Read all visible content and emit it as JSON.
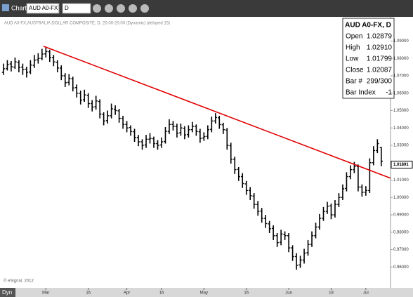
{
  "toolbar": {
    "title": "Chart",
    "symbol": "AUD A0-FX",
    "interval": "D"
  },
  "chart_data": {
    "type": "ohlc",
    "subtitle": "AUD A0-FX,AUSTRALIA DOLLAR COMPOSITE, D, 20:00-20:00 (Dynamic) (delayed 15)",
    "footer": "© eSignal, 2012",
    "mode": "Dyn",
    "color": "#000000",
    "bars": [
      [
        1.072,
        1.077,
        1.0705,
        1.074
      ],
      [
        1.0742,
        1.079,
        1.073,
        1.0765
      ],
      [
        1.0768,
        1.0785,
        1.0725,
        1.0752
      ],
      [
        1.075,
        1.0805,
        1.074,
        1.078
      ],
      [
        1.0776,
        1.079,
        1.072,
        1.0748
      ],
      [
        1.075,
        1.077,
        1.0705,
        1.0735
      ],
      [
        1.0738,
        1.0752,
        1.069,
        1.072
      ],
      [
        1.0722,
        1.079,
        1.071,
        1.0762
      ],
      [
        1.076,
        1.082,
        1.0745,
        1.079
      ],
      [
        1.0792,
        1.083,
        1.077,
        1.08
      ],
      [
        1.08,
        1.0855,
        1.079,
        1.0825
      ],
      [
        1.0826,
        1.0866,
        1.0805,
        1.084
      ],
      [
        1.0838,
        1.085,
        1.078,
        1.0805
      ],
      [
        1.0806,
        1.082,
        1.0755,
        1.078
      ],
      [
        1.0778,
        1.079,
        1.072,
        1.0745
      ],
      [
        1.0744,
        1.076,
        1.0675,
        1.07
      ],
      [
        1.07,
        1.0715,
        1.0635,
        1.066
      ],
      [
        1.0662,
        1.071,
        1.0645,
        1.0685
      ],
      [
        1.0683,
        1.0695,
        1.061,
        1.063
      ],
      [
        1.0632,
        1.065,
        1.0575,
        1.06
      ],
      [
        1.0598,
        1.0615,
        1.0535,
        1.056
      ],
      [
        1.0562,
        1.062,
        1.055,
        1.059
      ],
      [
        1.0588,
        1.06,
        1.0515,
        1.054
      ],
      [
        1.054,
        1.056,
        1.0495,
        1.052
      ],
      [
        1.0522,
        1.0585,
        1.0505,
        1.0555
      ],
      [
        1.0552,
        1.0565,
        1.0455,
        1.048
      ],
      [
        1.0478,
        1.049,
        1.0415,
        1.044
      ],
      [
        1.0442,
        1.05,
        1.0425,
        1.047
      ],
      [
        1.047,
        1.054,
        1.0455,
        1.051
      ],
      [
        1.0508,
        1.053,
        1.0475,
        1.05
      ],
      [
        1.0498,
        1.051,
        1.043,
        1.0455
      ],
      [
        1.0455,
        1.047,
        1.0395,
        1.042
      ],
      [
        1.042,
        1.044,
        1.0375,
        1.04
      ],
      [
        1.0402,
        1.0415,
        1.0355,
        1.038
      ],
      [
        1.0378,
        1.0395,
        1.032,
        1.0345
      ],
      [
        1.0345,
        1.036,
        1.0295,
        1.032
      ],
      [
        1.032,
        1.0335,
        1.0275,
        1.03
      ],
      [
        1.0302,
        1.036,
        1.0285,
        1.0335
      ],
      [
        1.0335,
        1.037,
        1.031,
        1.034
      ],
      [
        1.0338,
        1.035,
        1.0285,
        1.031
      ],
      [
        1.031,
        1.033,
        1.0275,
        1.03
      ],
      [
        1.0302,
        1.0345,
        1.0285,
        1.032
      ],
      [
        1.0322,
        1.0405,
        1.031,
        1.038
      ],
      [
        1.038,
        1.045,
        1.0365,
        1.042
      ],
      [
        1.042,
        1.044,
        1.0385,
        1.041
      ],
      [
        1.0408,
        1.0425,
        1.0345,
        1.037
      ],
      [
        1.0372,
        1.0425,
        1.0355,
        1.04
      ],
      [
        1.0398,
        1.041,
        1.0335,
        1.036
      ],
      [
        1.0362,
        1.0415,
        1.0345,
        1.039
      ],
      [
        1.039,
        1.0435,
        1.0375,
        1.041
      ],
      [
        1.0408,
        1.042,
        1.0355,
        1.038
      ],
      [
        1.0378,
        1.0395,
        1.0315,
        1.034
      ],
      [
        1.0342,
        1.0375,
        1.0325,
        1.035
      ],
      [
        1.0352,
        1.0415,
        1.0335,
        1.039
      ],
      [
        1.0392,
        1.0465,
        1.0375,
        1.044
      ],
      [
        1.044,
        1.0485,
        1.0425,
        1.046
      ],
      [
        1.0458,
        1.047,
        1.0395,
        1.042
      ],
      [
        1.0418,
        1.043,
        1.0365,
        1.039
      ],
      [
        1.0388,
        1.04,
        1.0275,
        1.03
      ],
      [
        1.0298,
        1.0315,
        1.0195,
        1.022
      ],
      [
        1.022,
        1.0235,
        1.0135,
        1.016
      ],
      [
        1.0162,
        1.0175,
        1.0095,
        1.012
      ],
      [
        1.012,
        1.014,
        1.0055,
        1.008
      ],
      [
        1.0078,
        1.0095,
        1.0015,
        1.004
      ],
      [
        1.004,
        1.006,
        0.9985,
        1.001
      ],
      [
        1.0008,
        1.0025,
        0.9935,
        0.996
      ],
      [
        0.996,
        0.998,
        0.9895,
        0.992
      ],
      [
        0.9922,
        0.994,
        0.9855,
        0.988
      ],
      [
        0.988,
        0.99,
        0.9825,
        0.985
      ],
      [
        0.9848,
        0.9865,
        0.9795,
        0.982
      ],
      [
        0.9822,
        0.984,
        0.9755,
        0.978
      ],
      [
        0.978,
        0.9795,
        0.9715,
        0.974
      ],
      [
        0.9742,
        0.9815,
        0.9725,
        0.979
      ],
      [
        0.9788,
        0.9805,
        0.9755,
        0.978
      ],
      [
        0.978,
        0.9795,
        0.9685,
        0.971
      ],
      [
        0.971,
        0.9725,
        0.9635,
        0.966
      ],
      [
        0.966,
        0.968,
        0.9585,
        0.961
      ],
      [
        0.9612,
        0.9665,
        0.9595,
        0.964
      ],
      [
        0.964,
        0.9705,
        0.962,
        0.968
      ],
      [
        0.9682,
        0.9755,
        0.9665,
        0.973
      ],
      [
        0.973,
        0.9805,
        0.9715,
        0.978
      ],
      [
        0.978,
        0.9855,
        0.9765,
        0.983
      ],
      [
        0.983,
        0.9905,
        0.9815,
        0.988
      ],
      [
        0.988,
        0.9945,
        0.9865,
        0.992
      ],
      [
        0.992,
        0.9975,
        0.9905,
        0.995
      ],
      [
        0.9952,
        0.9965,
        0.9875,
        0.99
      ],
      [
        0.99,
        0.9985,
        0.9885,
        0.996
      ],
      [
        0.996,
        1.0025,
        0.9945,
        1.0
      ],
      [
        1.0,
        1.0075,
        0.9985,
        1.005
      ],
      [
        1.0052,
        1.0145,
        1.0035,
        1.012
      ],
      [
        1.012,
        1.0185,
        1.0105,
        1.016
      ],
      [
        1.016,
        1.0205,
        1.014,
        1.018
      ],
      [
        1.0178,
        1.019,
        1.0035,
        1.006
      ],
      [
        1.006,
        1.0075,
        1.0005,
        1.003
      ],
      [
        1.003,
        1.0065,
        1.001,
        1.004
      ],
      [
        1.004,
        1.0225,
        1.0025,
        1.02
      ],
      [
        1.02,
        1.0295,
        1.0185,
        1.027
      ],
      [
        1.027,
        1.0335,
        1.0255,
        1.031
      ],
      [
        1.02879,
        1.0291,
        1.01799,
        1.02087
      ]
    ],
    "trendline": {
      "x": [
        10.4,
        100.4
      ],
      "y": [
        1.087,
        1.0111
      ],
      "color": "#e00000"
    },
    "last_price": {
      "value": 1.01891,
      "label": "1.01891"
    },
    "xlim": [
      -0.9,
      100.4
    ],
    "xticks": [
      {
        "value": 11,
        "label": "Mar"
      },
      {
        "value": 22,
        "label": "16"
      },
      {
        "value": 32,
        "label": "Apr"
      },
      {
        "value": 41,
        "label": "16"
      },
      {
        "value": 52,
        "label": "May"
      },
      {
        "value": 63,
        "label": "16"
      },
      {
        "value": 74,
        "label": "Jun"
      },
      {
        "value": 85,
        "label": "18"
      },
      {
        "value": 94,
        "label": "Jul"
      }
    ],
    "ylim": [
      0.948,
      1.1039
    ],
    "yticks": [
      {
        "value": 0.96,
        "label": "0.96000"
      },
      {
        "value": 0.97,
        "label": "0.97000"
      },
      {
        "value": 0.98,
        "label": "0.98000"
      },
      {
        "value": 0.99,
        "label": "0.99000"
      },
      {
        "value": 1.0,
        "label": "1.00000"
      },
      {
        "value": 1.01,
        "label": "1.01000"
      },
      {
        "value": 1.03,
        "label": "1.03000"
      },
      {
        "value": 1.04,
        "label": "1.04000"
      },
      {
        "value": 1.05,
        "label": "1.05000"
      },
      {
        "value": 1.06,
        "label": "1.06000"
      },
      {
        "value": 1.07,
        "label": "1.07000"
      },
      {
        "value": 1.08,
        "label": "1.08000"
      },
      {
        "value": 1.09,
        "label": "1.09000"
      }
    ],
    "info": {
      "title": "AUD A0-FX, D",
      "rows": [
        [
          "Open",
          "1.02879"
        ],
        [
          "High",
          "1.02910"
        ],
        [
          "Low",
          "1.01799"
        ],
        [
          "Close",
          "1.02087"
        ],
        [
          "Bar #",
          "299/300"
        ],
        [
          "Bar Index",
          "-1"
        ]
      ]
    }
  }
}
